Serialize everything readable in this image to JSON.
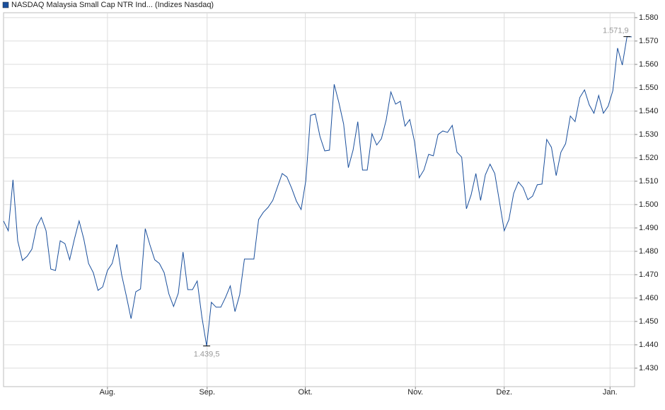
{
  "chart_data": {
    "type": "line",
    "x": [
      0,
      1,
      2,
      3,
      4,
      5,
      6,
      7,
      8,
      9,
      10,
      11,
      12,
      13,
      14,
      15,
      16,
      17,
      18,
      19,
      20,
      21,
      22,
      23,
      24,
      25,
      26,
      27,
      28,
      29,
      30,
      31,
      32,
      33,
      34,
      35,
      36,
      37,
      38,
      39,
      40,
      41,
      42,
      43,
      44,
      45,
      46,
      47,
      48,
      49,
      50,
      51,
      52,
      53,
      54,
      55,
      56,
      57,
      58,
      59,
      60,
      61,
      62,
      63,
      64,
      65,
      66,
      67,
      68,
      69,
      70,
      71,
      72,
      73,
      74,
      75,
      76,
      77,
      78,
      79,
      80,
      81,
      82,
      83,
      84,
      85,
      86,
      87,
      88,
      89,
      90,
      91,
      92,
      93,
      94,
      95,
      96,
      97,
      98,
      99,
      100,
      101,
      102,
      103,
      104,
      105,
      106,
      107,
      108,
      109,
      110,
      111,
      112,
      113,
      114,
      115,
      116,
      117,
      118,
      119,
      120,
      121,
      122,
      123,
      124,
      125,
      126,
      127,
      128,
      129,
      130,
      131,
      132,
      133
    ],
    "series": [
      {
        "name": "NASDAQ Malaysia Small Cap NTR Ind... (Indizes Nasdaq)",
        "color": "#1a4f9c",
        "values": [
          1493.0,
          1488.8,
          1510.6,
          1484.5,
          1476.1,
          1477.9,
          1480.9,
          1490.6,
          1494.5,
          1488.8,
          1472.4,
          1471.8,
          1484.5,
          1483.3,
          1476.4,
          1485.2,
          1493.0,
          1485.2,
          1474.8,
          1470.9,
          1463.3,
          1464.8,
          1471.8,
          1474.8,
          1483.0,
          1470.0,
          1460.9,
          1451.2,
          1462.7,
          1463.9,
          1489.7,
          1482.7,
          1476.4,
          1474.8,
          1470.9,
          1461.8,
          1456.4,
          1462.1,
          1479.7,
          1463.6,
          1463.6,
          1467.3,
          1451.8,
          1439.5,
          1458.2,
          1456.1,
          1456.1,
          1460.3,
          1465.2,
          1454.2,
          1461.5,
          1476.7,
          1476.7,
          1476.7,
          1493.6,
          1496.7,
          1498.8,
          1501.8,
          1507.6,
          1513.3,
          1511.8,
          1507.0,
          1501.5,
          1497.9,
          1510.3,
          1538.2,
          1538.8,
          1529.1,
          1523.0,
          1523.3,
          1551.5,
          1543.6,
          1534.5,
          1515.8,
          1523.3,
          1535.5,
          1514.8,
          1514.8,
          1530.3,
          1525.5,
          1528.2,
          1536.1,
          1548.2,
          1543.0,
          1544.2,
          1533.6,
          1536.4,
          1527.0,
          1511.5,
          1514.8,
          1521.5,
          1520.9,
          1530.0,
          1531.5,
          1530.9,
          1533.9,
          1522.4,
          1520.3,
          1498.2,
          1504.2,
          1513.3,
          1501.8,
          1512.7,
          1517.3,
          1513.3,
          1501.2,
          1488.8,
          1493.6,
          1504.8,
          1509.7,
          1507.3,
          1502.1,
          1503.6,
          1508.5,
          1508.8,
          1527.9,
          1524.5,
          1512.4,
          1522.4,
          1526.1,
          1537.9,
          1535.5,
          1545.8,
          1549.1,
          1542.7,
          1539.1,
          1546.7,
          1539.1,
          1542.1,
          1548.8,
          1567.0,
          1559.7,
          1571.9,
          1571.8
        ],
        "value_labels": [
          null,
          null,
          null,
          null,
          null,
          null,
          null,
          null,
          null,
          null,
          null,
          null,
          null,
          null,
          null,
          null,
          null,
          null,
          null,
          null,
          null,
          null,
          null,
          null,
          null,
          null,
          null,
          null,
          null,
          null,
          null,
          null,
          null,
          null,
          null,
          null,
          null,
          null,
          null,
          null,
          null,
          null,
          null,
          "1.439,5",
          null,
          null,
          null,
          null,
          null,
          null,
          null,
          null,
          null,
          null,
          null,
          null,
          null,
          null,
          null,
          null,
          null,
          null,
          null,
          null,
          null,
          null,
          null,
          null,
          null,
          null,
          null,
          null,
          null,
          null,
          null,
          null,
          null,
          null,
          null,
          null,
          null,
          null,
          null,
          null,
          null,
          null,
          null,
          null,
          null,
          null,
          null,
          null,
          null,
          null,
          null,
          null,
          null,
          null,
          null,
          null,
          null,
          null,
          null,
          null,
          null,
          null,
          null,
          null,
          null,
          null,
          null,
          null,
          null,
          null,
          null,
          null,
          null,
          null,
          null,
          null,
          null,
          null,
          null,
          null,
          null,
          null,
          null,
          null,
          null,
          null,
          null,
          null,
          "1.571,9",
          null
        ]
      }
    ],
    "xlim": [
      0,
      133.6
    ],
    "xticks": [
      {
        "value": 22.0,
        "label": "Aug."
      },
      {
        "value": 43.1,
        "label": "Sep."
      },
      {
        "value": 63.9,
        "label": "Okt."
      },
      {
        "value": 87.2,
        "label": "Nov."
      },
      {
        "value": 106.0,
        "label": "Dez."
      },
      {
        "value": 128.4,
        "label": "Jan."
      }
    ],
    "ylim": [
      1422.1,
      1582.1
    ],
    "yticks": [
      {
        "value": 1430,
        "label": "1.430"
      },
      {
        "value": 1440,
        "label": "1.440"
      },
      {
        "value": 1450,
        "label": "1.450"
      },
      {
        "value": 1460,
        "label": "1.460"
      },
      {
        "value": 1470,
        "label": "1.470"
      },
      {
        "value": 1480,
        "label": "1.480"
      },
      {
        "value": 1490,
        "label": "1.490"
      },
      {
        "value": 1500,
        "label": "1.500"
      },
      {
        "value": 1510,
        "label": "1.510"
      },
      {
        "value": 1520,
        "label": "1.520"
      },
      {
        "value": 1530,
        "label": "1.530"
      },
      {
        "value": 1540,
        "label": "1.540"
      },
      {
        "value": 1550,
        "label": "1.550"
      },
      {
        "value": 1560,
        "label": "1.560"
      },
      {
        "value": 1570,
        "label": "1.570"
      },
      {
        "value": 1580,
        "label": "1.580"
      }
    ],
    "grid": true
  }
}
